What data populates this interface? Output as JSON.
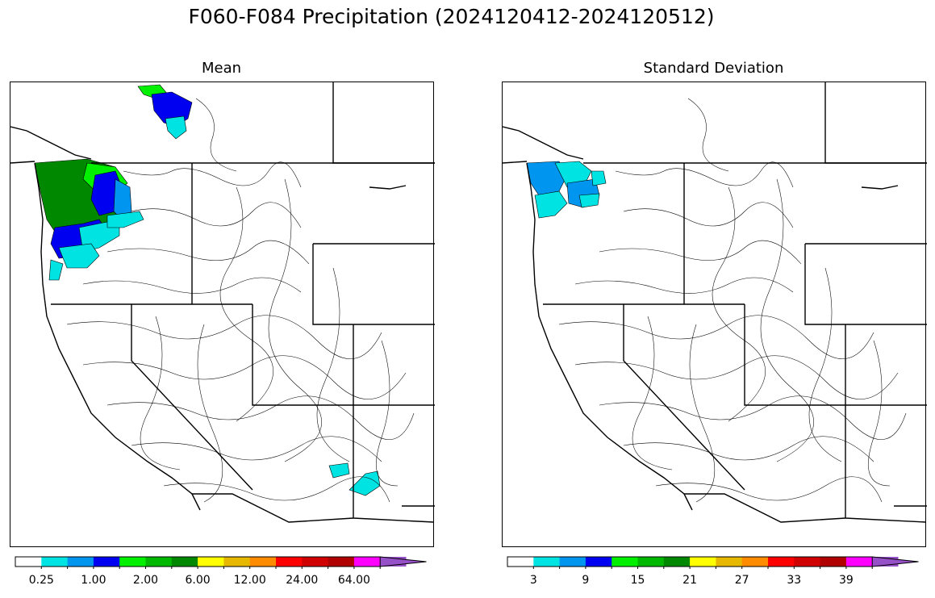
{
  "title": "F060-F084 Precipitation (2024120412-2024120512)",
  "panels": [
    {
      "title": "Mean",
      "colorbar": {
        "colors": [
          "#ffffff",
          "#00e3e3",
          "#0096f0",
          "#0000f0",
          "#00f000",
          "#00b800",
          "#008800",
          "#ffff00",
          "#e6b800",
          "#ff8c00",
          "#ff0000",
          "#d00000",
          "#b00000",
          "#ff00ff",
          "#9650c8"
        ],
        "tick_labels": [
          "0.25",
          "1.00",
          "2.00",
          "6.00",
          "12.00",
          "24.00",
          "64.00"
        ]
      }
    },
    {
      "title": "Standard Deviation",
      "colorbar": {
        "colors": [
          "#ffffff",
          "#00e3e3",
          "#0096f0",
          "#0000f0",
          "#00f000",
          "#00b800",
          "#008800",
          "#ffff00",
          "#e6b800",
          "#ff8c00",
          "#ff0000",
          "#d00000",
          "#b00000",
          "#ff00ff",
          "#9650c8"
        ],
        "tick_labels": [
          "3",
          "9",
          "15",
          "21",
          "27",
          "33",
          "39"
        ]
      }
    }
  ]
}
